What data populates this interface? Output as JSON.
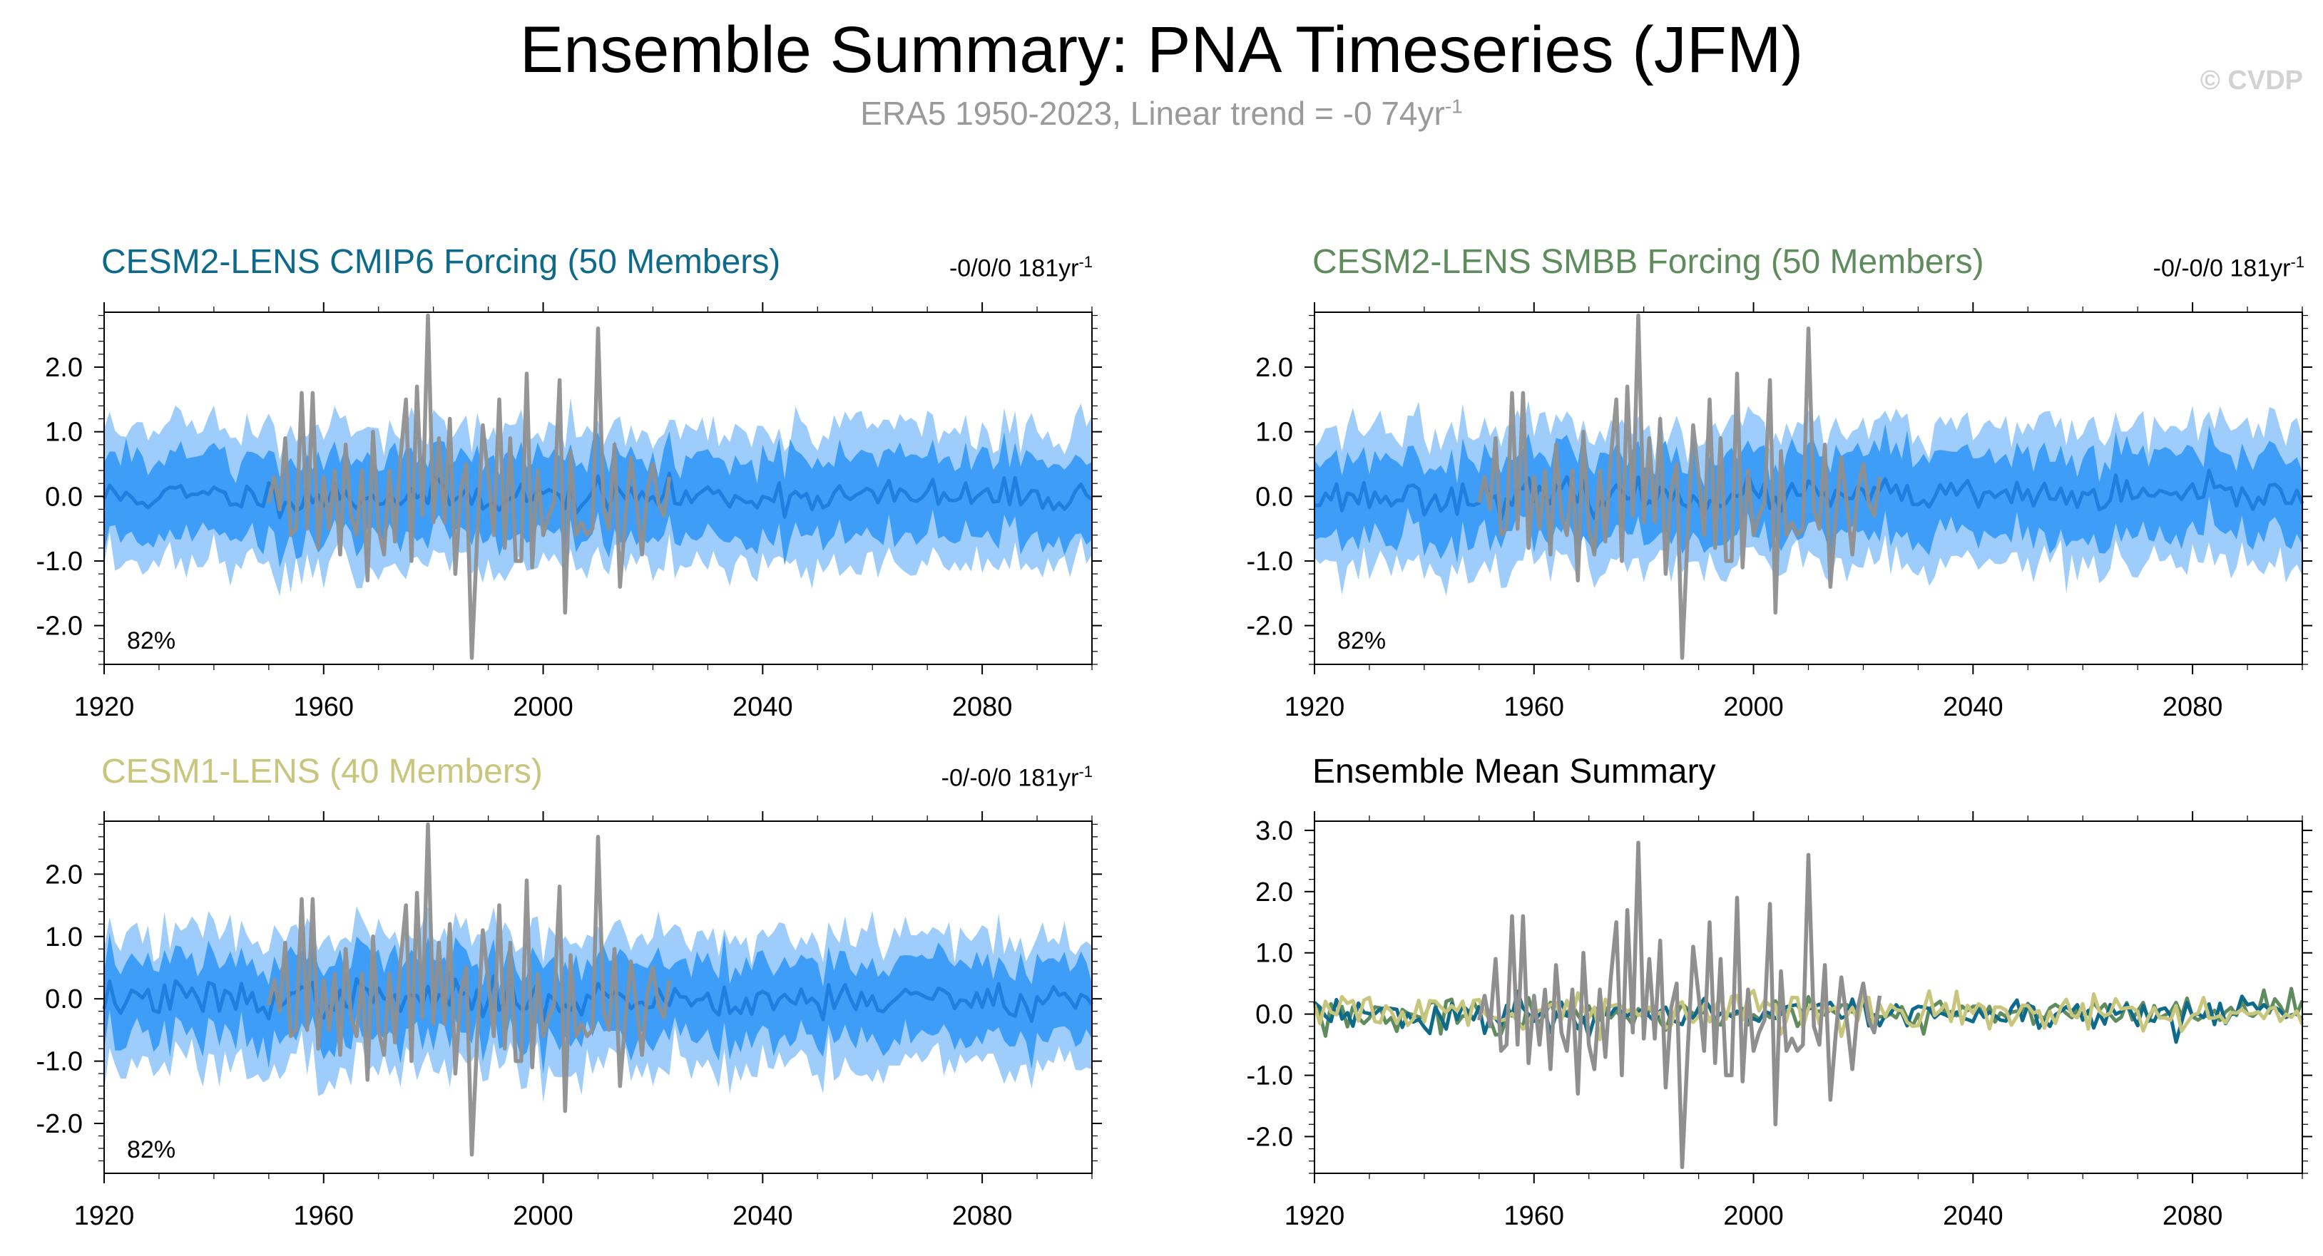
{
  "header": {
    "title": "Ensemble Summary: PNA Timeseries (JFM)",
    "subtitle_main": "ERA5 1950-2023, Linear trend = -0 74yr",
    "subtitle_sup": "-1",
    "copyright": "© CVDP"
  },
  "colors": {
    "band_outer": "#9fcdfb",
    "band_inner": "#3d9df7",
    "ensemble_mean": "#1f7fde",
    "observations": "#8f8f8f",
    "cesm2_cmip6": "#0e6a8a",
    "cesm2_smbb": "#5e8c5c",
    "cesm1": "#c8c67c"
  },
  "chart_data": [
    {
      "type": "area",
      "id": "p1",
      "title": "CESM2-LENS CMIP6 Forcing (50 Members)",
      "title_color": "#0e6a8a",
      "trend_text": "-0/0/0 181yr",
      "trend_sup": "-1",
      "percent_label": "82%",
      "x_range": [
        1920,
        2100
      ],
      "x_ticks": [
        1920,
        1960,
        2000,
        2040,
        2080
      ],
      "ylim": [
        -2.6,
        2.85
      ],
      "y_ticks": [
        -2.0,
        -1.0,
        0.0,
        1.0,
        2.0
      ],
      "y_tick_labels": [
        "-2.0",
        "-1.0",
        "0.0",
        "1.0",
        "2.0"
      ],
      "seed": 11,
      "series": [
        {
          "name": "ensemble 10-90% spread",
          "style": "band_outer",
          "mean": 0.0,
          "half_width": 1.05
        },
        {
          "name": "ensemble 25-75% spread",
          "style": "band_inner",
          "mean": 0.0,
          "half_width": 0.62
        },
        {
          "name": "ensemble mean",
          "style": "line",
          "years": [
            1920,
            2100
          ],
          "std": 0.13
        },
        {
          "name": "ERA5",
          "style": "obs",
          "years": [
            1950,
            2023
          ]
        }
      ]
    },
    {
      "type": "area",
      "id": "p2",
      "title": "CESM2-LENS SMBB Forcing (50 Members)",
      "title_color": "#5e8c5c",
      "trend_text": "-0/-0/0 181yr",
      "trend_sup": "-1",
      "percent_label": "82%",
      "x_range": [
        1920,
        2100
      ],
      "x_ticks": [
        1920,
        1960,
        2000,
        2040,
        2080
      ],
      "ylim": [
        -2.6,
        2.85
      ],
      "y_ticks": [
        -2.0,
        -1.0,
        0.0,
        1.0,
        2.0
      ],
      "y_tick_labels": [
        "-2.0",
        "-1.0",
        "0.0",
        "1.0",
        "2.0"
      ],
      "seed": 23,
      "series": [
        {
          "name": "ensemble 10-90% spread",
          "style": "band_outer",
          "mean": 0.0,
          "half_width": 1.05
        },
        {
          "name": "ensemble 25-75% spread",
          "style": "band_inner",
          "mean": 0.0,
          "half_width": 0.62
        },
        {
          "name": "ensemble mean",
          "style": "line",
          "years": [
            1920,
            2100
          ],
          "std": 0.13
        },
        {
          "name": "ERA5",
          "style": "obs",
          "years": [
            1950,
            2023
          ]
        }
      ]
    },
    {
      "type": "area",
      "id": "p3",
      "title": "CESM1-LENS (40 Members)",
      "title_color": "#c8c67c",
      "trend_text": "-0/-0/0 181yr",
      "trend_sup": "-1",
      "percent_label": "82%",
      "x_range": [
        1920,
        2100
      ],
      "x_ticks": [
        1920,
        1960,
        2000,
        2040,
        2080
      ],
      "ylim": [
        -2.8,
        2.85
      ],
      "y_ticks": [
        -2.0,
        -1.0,
        0.0,
        1.0,
        2.0
      ],
      "y_tick_labels": [
        "-2.0",
        "-1.0",
        "0.0",
        "1.0",
        "2.0"
      ],
      "seed": 37,
      "series": [
        {
          "name": "ensemble 10-90% spread",
          "style": "band_outer",
          "mean": 0.0,
          "half_width": 1.05
        },
        {
          "name": "ensemble 25-75% spread",
          "style": "band_inner",
          "mean": 0.0,
          "half_width": 0.62
        },
        {
          "name": "ensemble mean",
          "style": "line",
          "years": [
            1920,
            2100
          ],
          "std": 0.15
        },
        {
          "name": "ERA5",
          "style": "obs",
          "years": [
            1950,
            2023
          ]
        }
      ]
    },
    {
      "type": "line",
      "id": "p4",
      "title": "Ensemble Mean Summary",
      "title_color": "#000000",
      "x_range": [
        1920,
        2100
      ],
      "x_ticks": [
        1920,
        1960,
        2000,
        2040,
        2080
      ],
      "ylim": [
        -2.6,
        3.15
      ],
      "y_ticks": [
        -2.0,
        -1.0,
        0.0,
        1.0,
        2.0,
        3.0
      ],
      "y_tick_labels": [
        "-2.0",
        "-1.0",
        "0.0",
        "1.0",
        "2.0",
        "3.0"
      ],
      "seed": 51,
      "series": [
        {
          "name": "ERA5",
          "style": "obs",
          "years": [
            1950,
            2023
          ]
        },
        {
          "name": "CESM2-LENS SMBB Forcing",
          "style": "mean_line",
          "color_key": "cesm2_smbb",
          "years": [
            1920,
            2100
          ],
          "std": 0.13
        },
        {
          "name": "CESM2-LENS CMIP6 Forcing",
          "style": "mean_line",
          "color_key": "cesm2_cmip6",
          "years": [
            1920,
            2100
          ],
          "std": 0.13
        },
        {
          "name": "CESM1-LENS",
          "style": "mean_line",
          "color_key": "cesm1",
          "years": [
            1920,
            2100
          ],
          "std": 0.15
        }
      ]
    }
  ],
  "observations": {
    "name": "ERA5",
    "years": [
      1950,
      1951,
      1952,
      1953,
      1954,
      1955,
      1956,
      1957,
      1958,
      1959,
      1960,
      1961,
      1962,
      1963,
      1964,
      1965,
      1966,
      1967,
      1968,
      1969,
      1970,
      1971,
      1972,
      1973,
      1974,
      1975,
      1976,
      1977,
      1978,
      1979,
      1980,
      1981,
      1982,
      1983,
      1984,
      1985,
      1986,
      1987,
      1988,
      1989,
      1990,
      1991,
      1992,
      1993,
      1994,
      1995,
      1996,
      1997,
      1998,
      1999,
      2000,
      2001,
      2002,
      2003,
      2004,
      2005,
      2006,
      2007,
      2008,
      2009,
      2010,
      2011,
      2012,
      2013,
      2014,
      2015,
      2016,
      2017,
      2018,
      2019,
      2020,
      2021,
      2022,
      2023
    ],
    "values": [
      -0.1,
      0.3,
      -0.2,
      0.9,
      -0.6,
      -0.5,
      1.6,
      -0.5,
      1.6,
      -0.8,
      0.3,
      -0.5,
      0.4,
      -0.9,
      0.8,
      -0.3,
      -0.6,
      0.4,
      -1.3,
      1.0,
      -0.5,
      -0.9,
      0.4,
      -0.7,
      0.6,
      1.5,
      -1.0,
      1.7,
      -0.3,
      2.8,
      -0.4,
      0.9,
      -0.4,
      1.2,
      -1.2,
      0.1,
      0.5,
      -2.5,
      -0.6,
      1.1,
      0.3,
      -0.6,
      1.5,
      -0.8,
      0.9,
      -1.0,
      -1.0,
      1.9,
      -1.1,
      0.4,
      -0.6,
      -0.3,
      -0.1,
      1.8,
      -1.8,
      0.7,
      -0.6,
      -0.4,
      -0.6,
      -0.5,
      2.6,
      -0.2,
      -0.5,
      0.8,
      -1.4,
      -0.3,
      0.6,
      -0.1,
      -0.9,
      0.1,
      0.5,
      -0.1,
      -0.3,
      0.3
    ]
  }
}
